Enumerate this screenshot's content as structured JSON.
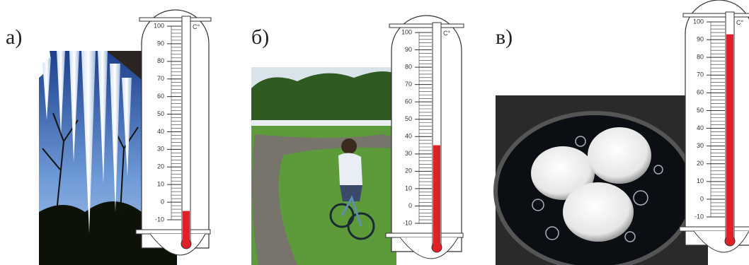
{
  "panels": [
    {
      "label": "а)",
      "thermometer": {
        "unit": "C°",
        "ticks": [
          100,
          90,
          80,
          70,
          60,
          50,
          40,
          30,
          20,
          10,
          0,
          -10
        ],
        "reading": -5
      }
    },
    {
      "label": "б)",
      "thermometer": {
        "unit": "C°",
        "ticks": [
          100,
          90,
          80,
          70,
          60,
          50,
          40,
          30,
          20,
          10,
          0,
          -10
        ],
        "reading": 35
      }
    },
    {
      "label": "в)",
      "thermometer": {
        "unit": "C°",
        "ticks": [
          100,
          90,
          80,
          70,
          60,
          50,
          40,
          30,
          20,
          10,
          0,
          -10
        ],
        "reading": 93
      }
    }
  ]
}
